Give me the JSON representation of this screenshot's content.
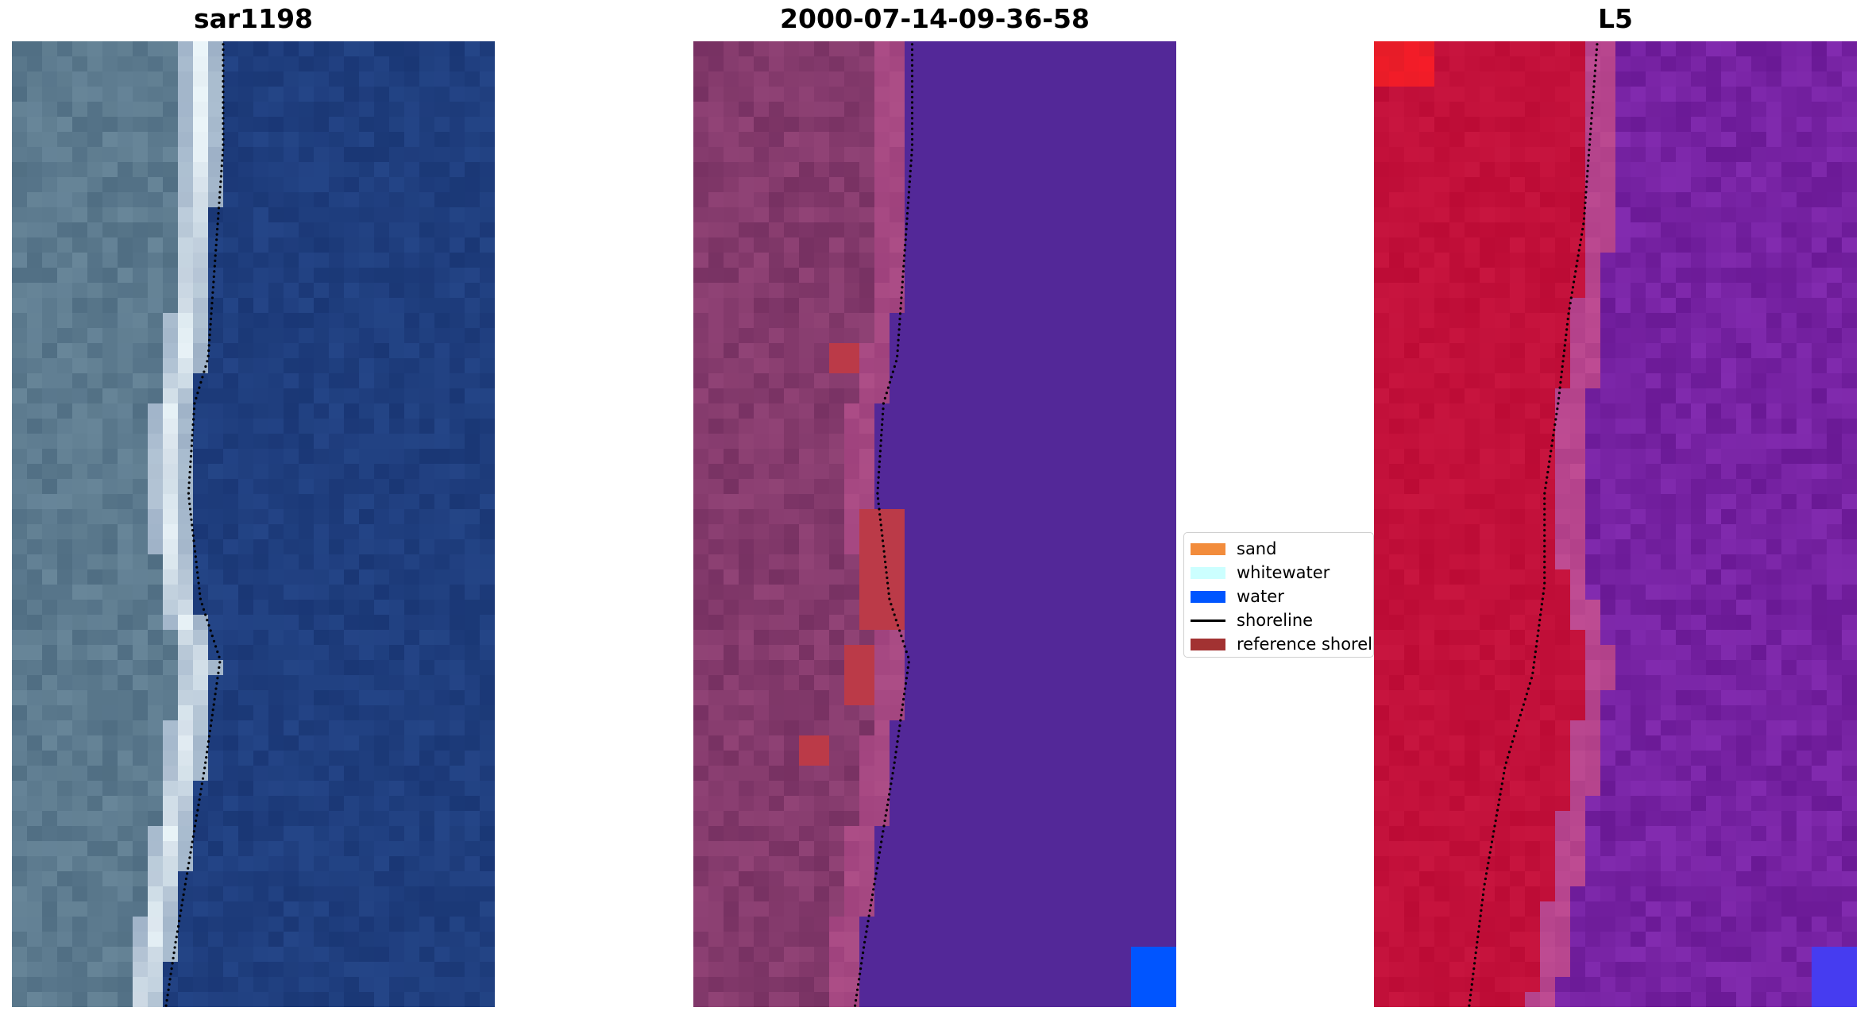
{
  "panels": [
    {
      "title": "sar1198",
      "kind": "rgb"
    },
    {
      "title": "2000-07-14-09-36-58",
      "kind": "classified"
    },
    {
      "title": "L5",
      "kind": "index"
    }
  ],
  "legend": {
    "items": [
      {
        "label": "sand",
        "color": "#f28c3c",
        "type": "patch"
      },
      {
        "label": "whitewater",
        "color": "#ccffff",
        "type": "patch"
      },
      {
        "label": "water",
        "color": "#0055ff",
        "type": "patch"
      },
      {
        "label": "shoreline",
        "color": "#000000",
        "type": "line"
      },
      {
        "label": "reference shoreline",
        "color": "#a23232",
        "type": "patch"
      }
    ]
  },
  "colors": {
    "land_rgb": "#5c7a8e",
    "water_rgb": "#1f3f7e",
    "beach_rgb": "#d8e4f0",
    "land_classified": "#8a3a6e",
    "water_classified": "#532898",
    "reference_shoreline_overlay": "#bb3a48",
    "land_index": "#c4103a",
    "water_index": "#7a22a2"
  }
}
